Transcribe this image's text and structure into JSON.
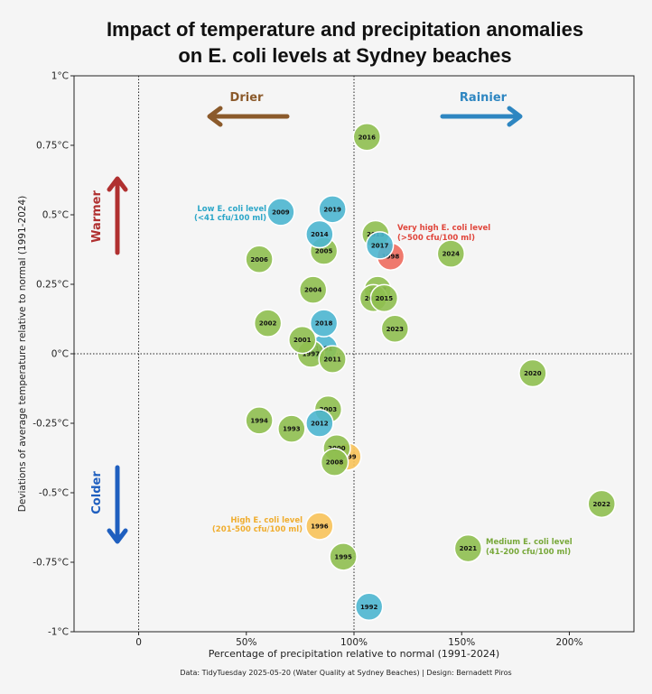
{
  "chart_data": {
    "type": "scatter",
    "title_line1": "Impact of temperature and precipitation anomalies",
    "title_line2": "on E. coli levels at Sydney beaches",
    "xlabel": "Percentage of precipitation relative to normal (1991-2024)",
    "ylabel": "Deviations of average temperature relative to normal (1991-2024)",
    "caption": "Data: TidyTuesday 2025-05-20 (Water Quality at Sydney Beaches) | Design: Bernadett Piros",
    "xlim": [
      -0.3,
      2.3
    ],
    "ylim": [
      -1,
      1
    ],
    "x_ticks": [
      {
        "value": 0,
        "label": "0"
      },
      {
        "value": 0.5,
        "label": "50%"
      },
      {
        "value": 1.0,
        "label": "100%"
      },
      {
        "value": 1.5,
        "label": "150%"
      },
      {
        "value": 2.0,
        "label": "200%"
      }
    ],
    "y_ticks": [
      {
        "value": 1,
        "label": "1°C"
      },
      {
        "value": 0.75,
        "label": "0.75°C"
      },
      {
        "value": 0.5,
        "label": "0.5°C"
      },
      {
        "value": 0.25,
        "label": "0.25°C"
      },
      {
        "value": 0,
        "label": "0°C"
      },
      {
        "value": -0.25,
        "label": "-0.25°C"
      },
      {
        "value": -0.5,
        "label": "-0.5°C"
      },
      {
        "value": -0.75,
        "label": "-0.75°C"
      },
      {
        "value": -1,
        "label": "-1°C"
      }
    ],
    "reference_lines": {
      "x": [
        0,
        1.0
      ],
      "y": [
        0
      ]
    },
    "categories": {
      "low": {
        "color": "#4db6d0"
      },
      "medium": {
        "color": "#8fbf50"
      },
      "high": {
        "color": "#f8c35a"
      },
      "very_high": {
        "color": "#ee6b5e"
      }
    },
    "points": [
      {
        "year": "1991",
        "x": 0.86,
        "y": 0.02,
        "category": "low"
      },
      {
        "year": "1992",
        "x": 1.07,
        "y": -0.91,
        "category": "low"
      },
      {
        "year": "1993",
        "x": 0.71,
        "y": -0.27,
        "category": "medium"
      },
      {
        "year": "1994",
        "x": 0.56,
        "y": -0.24,
        "category": "medium"
      },
      {
        "year": "1995",
        "x": 0.95,
        "y": -0.73,
        "category": "medium"
      },
      {
        "year": "1996",
        "x": 0.84,
        "y": -0.62,
        "category": "high"
      },
      {
        "year": "1997",
        "x": 0.8,
        "y": 0.0,
        "category": "medium"
      },
      {
        "year": "1998",
        "x": 1.17,
        "y": 0.35,
        "category": "very_high"
      },
      {
        "year": "1999",
        "x": 0.97,
        "y": -0.37,
        "category": "high"
      },
      {
        "year": "2000",
        "x": 0.92,
        "y": -0.34,
        "category": "medium"
      },
      {
        "year": "2001",
        "x": 0.76,
        "y": 0.05,
        "category": "medium"
      },
      {
        "year": "2002",
        "x": 0.6,
        "y": 0.11,
        "category": "medium"
      },
      {
        "year": "2003",
        "x": 0.88,
        "y": -0.2,
        "category": "medium"
      },
      {
        "year": "2004",
        "x": 0.81,
        "y": 0.23,
        "category": "medium"
      },
      {
        "year": "2005",
        "x": 0.86,
        "y": 0.37,
        "category": "medium"
      },
      {
        "year": "2006",
        "x": 0.56,
        "y": 0.34,
        "category": "medium"
      },
      {
        "year": "2007",
        "x": 1.11,
        "y": 0.23,
        "category": "medium"
      },
      {
        "year": "2008",
        "x": 0.91,
        "y": -0.39,
        "category": "medium"
      },
      {
        "year": "2009",
        "x": 0.66,
        "y": 0.51,
        "category": "low"
      },
      {
        "year": "2010",
        "x": 1.09,
        "y": 0.2,
        "category": "medium"
      },
      {
        "year": "2011",
        "x": 0.9,
        "y": -0.02,
        "category": "medium"
      },
      {
        "year": "2012",
        "x": 0.84,
        "y": -0.25,
        "category": "low"
      },
      {
        "year": "2013",
        "x": 1.1,
        "y": 0.43,
        "category": "medium"
      },
      {
        "year": "2014",
        "x": 0.84,
        "y": 0.43,
        "category": "low"
      },
      {
        "year": "2015",
        "x": 1.14,
        "y": 0.2,
        "category": "medium"
      },
      {
        "year": "2016",
        "x": 1.06,
        "y": 0.78,
        "category": "medium"
      },
      {
        "year": "2017",
        "x": 1.12,
        "y": 0.39,
        "category": "low"
      },
      {
        "year": "2018",
        "x": 0.86,
        "y": 0.11,
        "category": "low"
      },
      {
        "year": "2019",
        "x": 0.9,
        "y": 0.52,
        "category": "low"
      },
      {
        "year": "2020",
        "x": 1.83,
        "y": -0.07,
        "category": "medium"
      },
      {
        "year": "2021",
        "x": 1.53,
        "y": -0.7,
        "category": "medium"
      },
      {
        "year": "2022",
        "x": 2.15,
        "y": -0.54,
        "category": "medium"
      },
      {
        "year": "2023",
        "x": 1.19,
        "y": 0.09,
        "category": "medium"
      },
      {
        "year": "2024",
        "x": 1.45,
        "y": 0.36,
        "category": "medium"
      }
    ],
    "annotations": {
      "drier": {
        "text": "Drier",
        "color": "#8b5a2b"
      },
      "rainier": {
        "text": "Rainier",
        "color": "#2e86c1"
      },
      "warmer": {
        "text": "Warmer",
        "color": "#b03030"
      },
      "colder": {
        "text": "Colder",
        "color": "#1f5fbf"
      },
      "low_label": {
        "line1": "Low E. coli level",
        "line2": "(<41 cfu/100 ml)",
        "color": "#2ba6c8"
      },
      "very_high_label": {
        "line1": "Very high E. coli level",
        "line2": "(>500 cfu/100 ml)",
        "color": "#e0453b"
      },
      "high_label": {
        "line1": "High E. coli level",
        "line2": "(201-500 cfu/100 ml)",
        "color": "#f0ad2e"
      },
      "medium_label": {
        "line1": "Medium E. coli level",
        "line2": "(41-200 cfu/100 ml)",
        "color": "#78a83a"
      }
    }
  }
}
